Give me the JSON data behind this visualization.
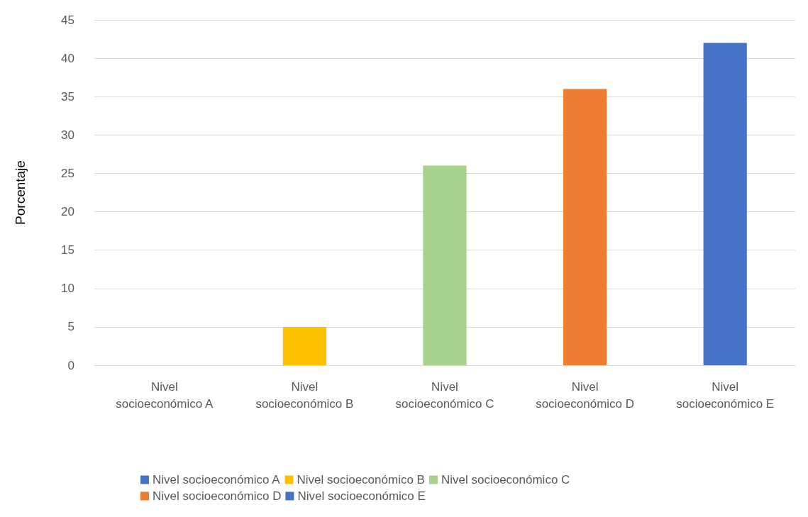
{
  "chart_data": {
    "type": "bar",
    "ylabel": "Porcentaje",
    "categories": [
      "Nivel socioeconómico A",
      "Nivel socioeconómico B",
      "Nivel socioeconómico C",
      "Nivel socioeconómico D",
      "Nivel socioeconómico E"
    ],
    "series": [
      {
        "name": "Nivel socioeconómico A",
        "color": "#4472c4",
        "values": [
          0,
          null,
          null,
          null,
          null
        ]
      },
      {
        "name": "Nivel socioeconómico B",
        "color": "#ffc000",
        "values": [
          null,
          5,
          null,
          null,
          null
        ]
      },
      {
        "name": "Nivel socioeconómico C",
        "color": "#a9d18e",
        "values": [
          null,
          null,
          26,
          null,
          null
        ]
      },
      {
        "name": "Nivel socioeconómico D",
        "color": "#ed7d31",
        "values": [
          null,
          null,
          null,
          36,
          null
        ]
      },
      {
        "name": "Nivel socioeconómico E",
        "color": "#4472c4",
        "values": [
          null,
          null,
          null,
          null,
          42
        ]
      }
    ],
    "ylim": [
      0,
      45
    ],
    "yticks": [
      0,
      5,
      10,
      15,
      20,
      25,
      30,
      35,
      40,
      45
    ],
    "grid": "y",
    "legend": "bottom"
  }
}
